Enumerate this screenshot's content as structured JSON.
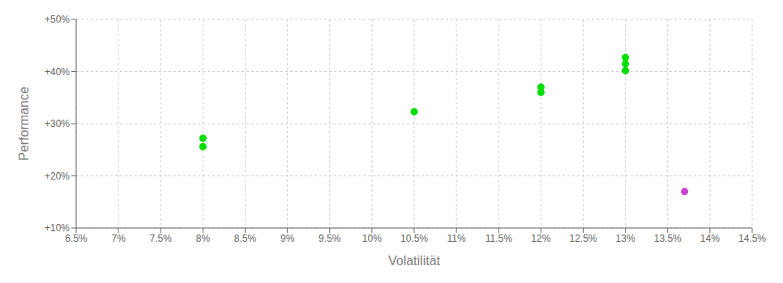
{
  "chart_data": {
    "type": "scatter",
    "x_label": "Volatilität",
    "y_label": "Performance",
    "xlim": [
      0.065,
      0.145
    ],
    "ylim": [
      0.1,
      0.5
    ],
    "xticks": [
      {
        "value": 0.065,
        "label": "6.5%"
      },
      {
        "value": 0.07,
        "label": "7%"
      },
      {
        "value": 0.075,
        "label": "7.5%"
      },
      {
        "value": 0.08,
        "label": "8%"
      },
      {
        "value": 0.085,
        "label": "8.5%"
      },
      {
        "value": 0.09,
        "label": "9%"
      },
      {
        "value": 0.095,
        "label": "9.5%"
      },
      {
        "value": 0.1,
        "label": "10%"
      },
      {
        "value": 0.105,
        "label": "10.5%"
      },
      {
        "value": 0.11,
        "label": "11%"
      },
      {
        "value": 0.115,
        "label": "11.5%"
      },
      {
        "value": 0.12,
        "label": "12%"
      },
      {
        "value": 0.125,
        "label": "12.5%"
      },
      {
        "value": 0.13,
        "label": "13%"
      },
      {
        "value": 0.135,
        "label": "13.5%"
      },
      {
        "value": 0.14,
        "label": "14%"
      },
      {
        "value": 0.145,
        "label": "14.5%"
      }
    ],
    "yticks": [
      {
        "value": 0.1,
        "label": "+10%"
      },
      {
        "value": 0.2,
        "label": "+20%"
      },
      {
        "value": 0.3,
        "label": "+30%"
      },
      {
        "value": 0.4,
        "label": "+40%"
      },
      {
        "value": 0.5,
        "label": "+50%"
      }
    ],
    "grid": true,
    "series": [
      {
        "color": "#00dd00",
        "x": [
          0.08,
          0.08,
          0.105,
          0.12,
          0.12,
          0.13,
          0.13,
          0.13
        ],
        "values": [
          0.272,
          0.256,
          0.323,
          0.37,
          0.36,
          0.427,
          0.415,
          0.402
        ]
      },
      {
        "color": "#cc44cc",
        "x": [
          0.137
        ],
        "values": [
          0.17
        ]
      }
    ]
  }
}
